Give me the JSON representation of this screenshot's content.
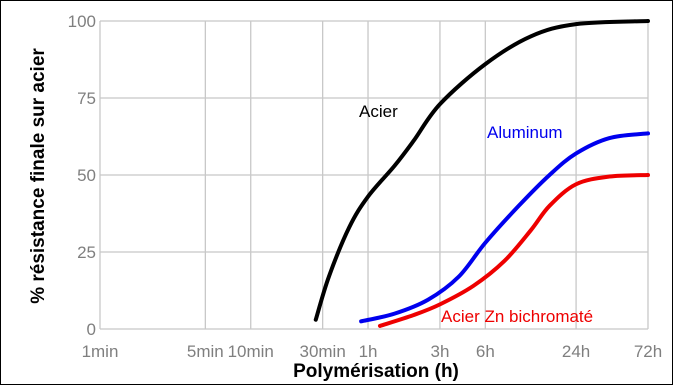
{
  "chart_data": {
    "type": "line",
    "title": "",
    "xlabel": "Polymérisation (h)",
    "ylabel": "% résistance finale sur acier",
    "x_scale": "log",
    "x_unit": "h",
    "x_ticks": [
      {
        "label": "1min",
        "value": 0.01667
      },
      {
        "label": "5min",
        "value": 0.08333
      },
      {
        "label": "10min",
        "value": 0.16667
      },
      {
        "label": "30min",
        "value": 0.5
      },
      {
        "label": "1h",
        "value": 1
      },
      {
        "label": "3h",
        "value": 3
      },
      {
        "label": "6h",
        "value": 6
      },
      {
        "label": "24h",
        "value": 24
      },
      {
        "label": "72h",
        "value": 72
      }
    ],
    "y_ticks": [
      0,
      25,
      50,
      75,
      100
    ],
    "ylim": [
      0,
      100
    ],
    "grid": true,
    "series": [
      {
        "name": "Acier",
        "color": "#000000",
        "points": [
          [
            0.45,
            3
          ],
          [
            0.55,
            17
          ],
          [
            0.75,
            33
          ],
          [
            1,
            43
          ],
          [
            1.5,
            53
          ],
          [
            2,
            61
          ],
          [
            3,
            73
          ],
          [
            6,
            86
          ],
          [
            12,
            95
          ],
          [
            24,
            99
          ],
          [
            72,
            100
          ]
        ]
      },
      {
        "name": "Aluminum",
        "color": "#0000ee",
        "points": [
          [
            0.9,
            2.5
          ],
          [
            1.5,
            5
          ],
          [
            2.5,
            9.5
          ],
          [
            4,
            17
          ],
          [
            6,
            28
          ],
          [
            10,
            40
          ],
          [
            16,
            50
          ],
          [
            24,
            57
          ],
          [
            40,
            62
          ],
          [
            72,
            63.5
          ]
        ]
      },
      {
        "name": "Acier Zn bichromaté",
        "color": "#ee0000",
        "points": [
          [
            1.2,
            1
          ],
          [
            2,
            4.5
          ],
          [
            3,
            8
          ],
          [
            5,
            14
          ],
          [
            8,
            22
          ],
          [
            12,
            32
          ],
          [
            16,
            40
          ],
          [
            24,
            47
          ],
          [
            40,
            49.5
          ],
          [
            72,
            50
          ]
        ]
      }
    ]
  }
}
